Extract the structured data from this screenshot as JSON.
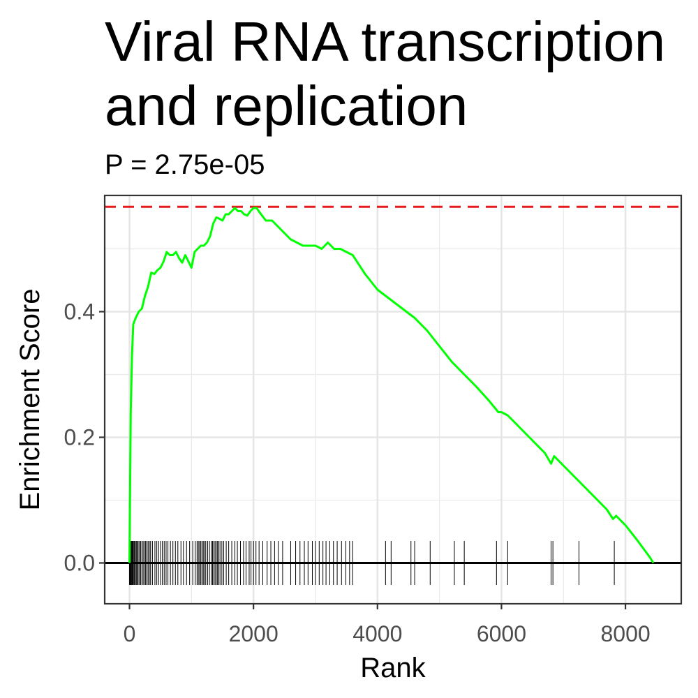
{
  "chart_data": {
    "type": "line",
    "title_lines": [
      "Viral RNA transcription",
      "and replication"
    ],
    "subtitle": "P = 2.75e-05",
    "xlabel": "Rank",
    "ylabel": "Enrichment Score",
    "xlim": [
      -400,
      8900
    ],
    "ylim": [
      -0.065,
      0.585
    ],
    "x_ticks": [
      0,
      2000,
      4000,
      6000,
      8000
    ],
    "x_tick_labels": [
      "0",
      "2000",
      "4000",
      "6000",
      "8000"
    ],
    "y_ticks": [
      0.0,
      0.2,
      0.4
    ],
    "y_tick_labels": [
      "0.0",
      "0.2",
      "0.4"
    ],
    "grid": true,
    "max_es_line": {
      "y": 0.567,
      "color": "#e41a1c",
      "style": "dashed"
    },
    "baseline": {
      "y": 0.0,
      "color": "#000000"
    },
    "line_color": "#00ff00",
    "es_curve": {
      "x": [
        0,
        20,
        40,
        60,
        100,
        150,
        200,
        250,
        300,
        350,
        400,
        450,
        500,
        550,
        600,
        650,
        700,
        750,
        800,
        850,
        900,
        950,
        1000,
        1050,
        1100,
        1150,
        1200,
        1250,
        1300,
        1350,
        1400,
        1450,
        1500,
        1550,
        1600,
        1650,
        1700,
        1750,
        1800,
        1850,
        1900,
        1950,
        2000,
        2050,
        2100,
        2200,
        2300,
        2400,
        2500,
        2600,
        2700,
        2800,
        2900,
        3000,
        3100,
        3200,
        3300,
        3400,
        3500,
        3600,
        3800,
        4000,
        4200,
        4400,
        4600,
        4800,
        5000,
        5200,
        5400,
        5600,
        5800,
        5950,
        6000,
        6100,
        6150,
        6300,
        6500,
        6700,
        6800,
        6850,
        7000,
        7200,
        7250,
        7300,
        7500,
        7700,
        7800,
        7850,
        8000,
        8200,
        8400,
        8450
      ],
      "y": [
        0.0,
        0.24,
        0.33,
        0.38,
        0.39,
        0.4,
        0.405,
        0.425,
        0.44,
        0.462,
        0.46,
        0.466,
        0.47,
        0.48,
        0.495,
        0.49,
        0.49,
        0.495,
        0.485,
        0.478,
        0.49,
        0.48,
        0.47,
        0.495,
        0.5,
        0.505,
        0.505,
        0.51,
        0.52,
        0.54,
        0.55,
        0.548,
        0.545,
        0.555,
        0.555,
        0.56,
        0.565,
        0.56,
        0.56,
        0.555,
        0.553,
        0.56,
        0.565,
        0.565,
        0.558,
        0.545,
        0.545,
        0.535,
        0.525,
        0.515,
        0.51,
        0.505,
        0.505,
        0.505,
        0.5,
        0.51,
        0.5,
        0.5,
        0.495,
        0.49,
        0.46,
        0.435,
        0.42,
        0.405,
        0.39,
        0.37,
        0.345,
        0.32,
        0.3,
        0.28,
        0.258,
        0.24,
        0.24,
        0.235,
        0.23,
        0.215,
        0.195,
        0.175,
        0.158,
        0.17,
        0.155,
        0.135,
        0.13,
        0.125,
        0.105,
        0.085,
        0.07,
        0.075,
        0.06,
        0.035,
        0.008,
        0.0
      ]
    },
    "gene_hits": [
      0,
      8,
      15,
      25,
      35,
      45,
      55,
      70,
      80,
      95,
      110,
      125,
      140,
      160,
      180,
      200,
      220,
      240,
      260,
      280,
      300,
      320,
      340,
      370,
      410,
      440,
      470,
      500,
      530,
      560,
      590,
      620,
      660,
      700,
      740,
      780,
      830,
      870,
      920,
      970,
      1020,
      1060,
      1090,
      1110,
      1130,
      1150,
      1170,
      1190,
      1210,
      1230,
      1260,
      1290,
      1320,
      1340,
      1360,
      1380,
      1400,
      1420,
      1440,
      1460,
      1490,
      1520,
      1560,
      1600,
      1650,
      1700,
      1740,
      1790,
      1840,
      1880,
      1930,
      1960,
      2000,
      2040,
      2090,
      2150,
      2220,
      2280,
      2340,
      2400,
      2470,
      2600,
      2680,
      2750,
      2820,
      2880,
      2950,
      3000,
      3060,
      3120,
      3170,
      3230,
      3290,
      3350,
      3420,
      3490,
      3550,
      3600,
      4130,
      4220,
      4540,
      4600,
      4850,
      5240,
      5400,
      5920,
      6100,
      6800,
      6830,
      7250,
      7820
    ]
  }
}
